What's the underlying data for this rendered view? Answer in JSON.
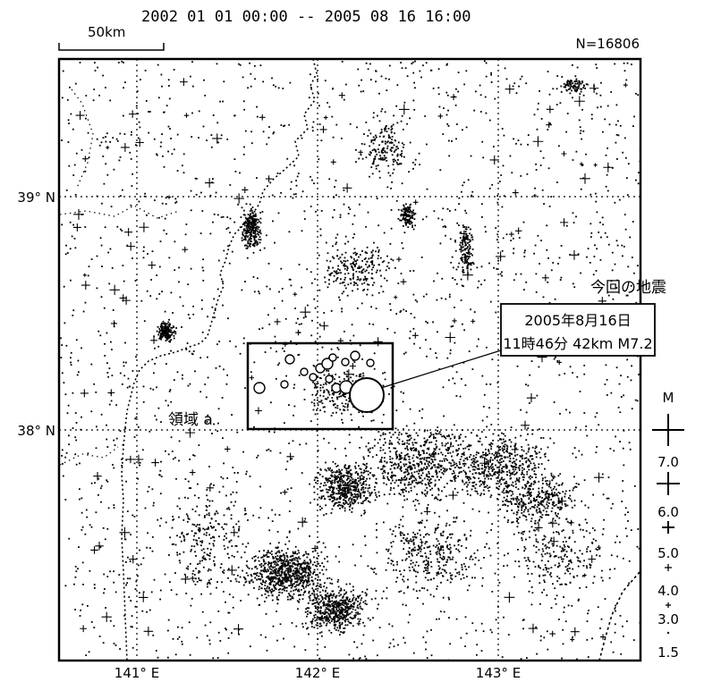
{
  "header": {
    "time_range": "2002 01 01 00:00 -- 2005 08 16 16:00",
    "scale_label": "50km",
    "count": "N=16806"
  },
  "axes": {
    "lat_labels": [
      "39° N",
      "38° N"
    ],
    "lon_labels": [
      "141° E",
      "142° E",
      "143° E"
    ]
  },
  "annotation": {
    "heading": "今回の地震",
    "date": "2005年8月16日",
    "details": "11時46分 42km  M7.2",
    "region_label": "領域 a"
  },
  "legend": {
    "title": "M",
    "magnitudes": [
      "7.0",
      "6.0",
      "5.0",
      "4.0",
      "3.0",
      "1.5"
    ]
  },
  "colors": {
    "ink": "#000000",
    "paper": "#ffffff"
  }
}
